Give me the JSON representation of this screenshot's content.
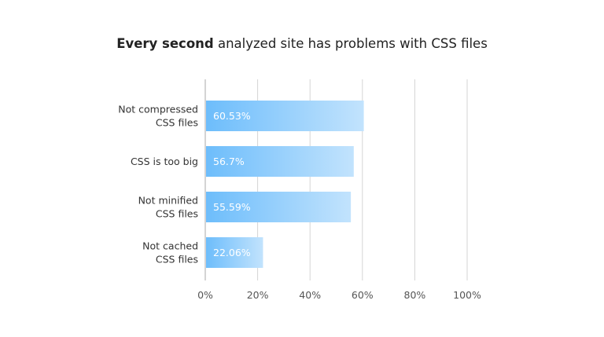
{
  "chart_data": {
    "type": "bar",
    "orientation": "horizontal",
    "title_bold": "Every second",
    "title_rest": " analyzed site has problems with CSS files",
    "categories": [
      [
        "Not compressed",
        "CSS files"
      ],
      [
        "CSS is too big"
      ],
      [
        "Not minified",
        "CSS files"
      ],
      [
        "Not cached",
        "CSS files"
      ]
    ],
    "values": [
      60.53,
      56.7,
      55.59,
      22.06
    ],
    "data_labels": [
      "60.53%",
      "56.7%",
      "55.59%",
      "22.06%"
    ],
    "xlim": [
      0,
      100
    ],
    "x_ticks": [
      "0%",
      "20%",
      "40%",
      "60%",
      "80%",
      "100%"
    ],
    "grid": true,
    "colors": {
      "bar_start": "#6dbdfb",
      "bar_end": "#c2e3fd",
      "grid": "#d4d4d4"
    }
  }
}
